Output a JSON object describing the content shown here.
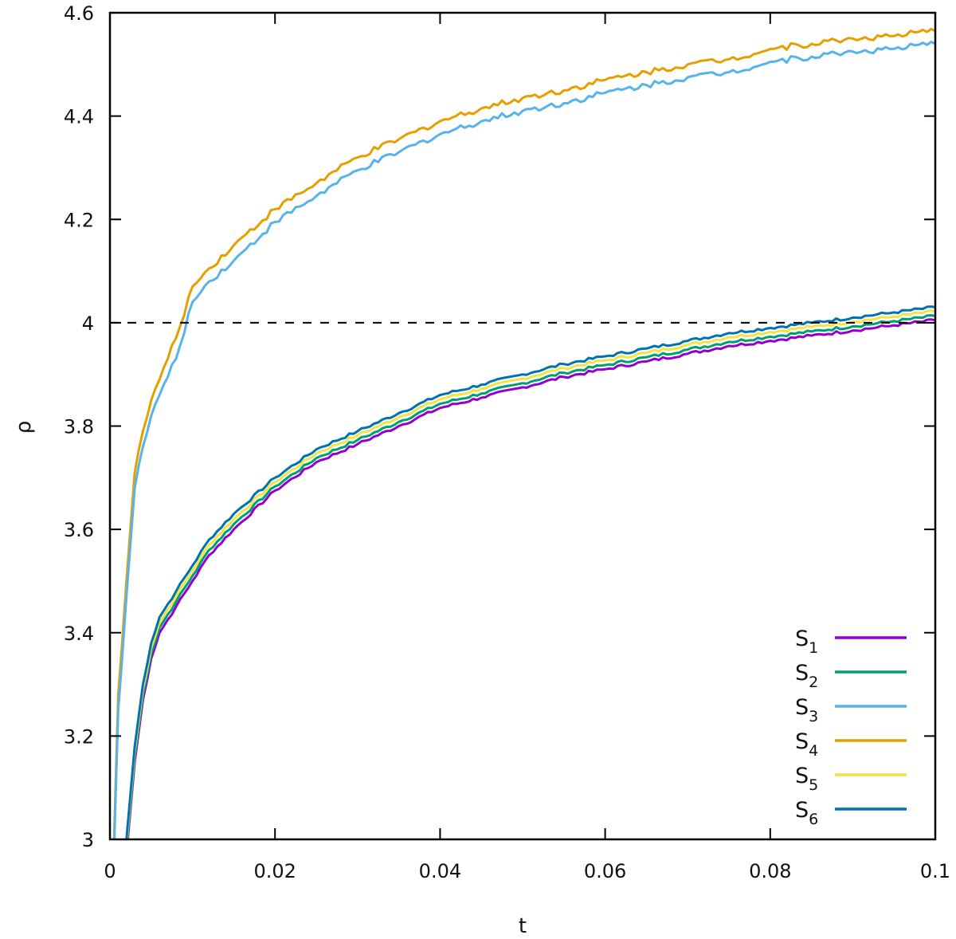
{
  "chart_data": {
    "type": "line",
    "title": "",
    "xlabel": "t",
    "ylabel": "ρ",
    "xlim": [
      0,
      0.1
    ],
    "ylim": [
      3,
      4.6
    ],
    "xticks": [
      0,
      0.02,
      0.04,
      0.06,
      0.08,
      0.1
    ],
    "xtick_labels": [
      "0",
      "0.02",
      "0.04",
      "0.06",
      "0.08",
      "0.1"
    ],
    "yticks": [
      3,
      3.2,
      3.4,
      3.6,
      3.8,
      4,
      4.2,
      4.4,
      4.6
    ],
    "ytick_labels": [
      "3",
      "3.2",
      "3.4",
      "3.6",
      "3.8",
      "4",
      "4.2",
      "4.4",
      "4.6"
    ],
    "grid": false,
    "legend_position": "lower right",
    "reference_line": {
      "type": "horizontal",
      "y": 4,
      "style": "dashed",
      "color": "#000000"
    },
    "x": [
      0.0005,
      0.001,
      0.002,
      0.003,
      0.004,
      0.005,
      0.006,
      0.008,
      0.01,
      0.012,
      0.015,
      0.02,
      0.025,
      0.03,
      0.035,
      0.04,
      0.045,
      0.05,
      0.055,
      0.06,
      0.065,
      0.07,
      0.075,
      0.08,
      0.085,
      0.09,
      0.095,
      0.1
    ],
    "series": [
      {
        "name": "S1",
        "sub": "1",
        "color": "#9400D3",
        "values": [
          null,
          null,
          2.97,
          3.15,
          3.27,
          3.35,
          3.4,
          3.45,
          3.5,
          3.55,
          3.6,
          3.675,
          3.73,
          3.765,
          3.8,
          3.835,
          3.855,
          3.875,
          3.895,
          3.91,
          3.925,
          3.94,
          3.955,
          3.965,
          3.975,
          3.985,
          3.995,
          4.005
        ]
      },
      {
        "name": "S2",
        "sub": "2",
        "color": "#009E73",
        "values": [
          null,
          null,
          2.98,
          3.16,
          3.28,
          3.36,
          3.41,
          3.46,
          3.51,
          3.56,
          3.61,
          3.683,
          3.738,
          3.773,
          3.808,
          3.843,
          3.863,
          3.883,
          3.903,
          3.918,
          3.933,
          3.948,
          3.963,
          3.973,
          3.983,
          3.993,
          4.003,
          4.013
        ]
      },
      {
        "name": "S3",
        "sub": "3",
        "color": "#56B4E9",
        "values": [
          2.98,
          3.25,
          3.47,
          3.68,
          3.76,
          3.82,
          3.86,
          3.93,
          4.04,
          4.08,
          4.12,
          4.195,
          4.245,
          4.295,
          4.33,
          4.365,
          4.39,
          4.41,
          4.425,
          4.445,
          4.46,
          4.475,
          4.485,
          4.505,
          4.515,
          4.525,
          4.53,
          4.54
        ]
      },
      {
        "name": "S4",
        "sub": "4",
        "color": "#E69F00",
        "values": [
          3.0,
          3.28,
          3.5,
          3.71,
          3.79,
          3.85,
          3.89,
          3.97,
          4.07,
          4.105,
          4.15,
          4.22,
          4.27,
          4.32,
          4.355,
          4.39,
          4.415,
          4.435,
          4.45,
          4.47,
          4.485,
          4.5,
          4.51,
          4.53,
          4.54,
          4.55,
          4.555,
          4.565
        ]
      },
      {
        "name": "S5",
        "sub": "5",
        "color": "#F0E442",
        "values": [
          null,
          null,
          2.99,
          3.17,
          3.29,
          3.37,
          3.42,
          3.47,
          3.52,
          3.57,
          3.62,
          3.692,
          3.747,
          3.782,
          3.817,
          3.852,
          3.872,
          3.892,
          3.912,
          3.927,
          3.942,
          3.957,
          3.972,
          3.982,
          3.992,
          4.002,
          4.012,
          4.022
        ]
      },
      {
        "name": "S6",
        "sub": "6",
        "color": "#0072B2",
        "values": [
          null,
          null,
          3.0,
          3.18,
          3.3,
          3.38,
          3.43,
          3.48,
          3.53,
          3.58,
          3.63,
          3.7,
          3.755,
          3.79,
          3.825,
          3.86,
          3.88,
          3.9,
          3.92,
          3.935,
          3.95,
          3.965,
          3.98,
          3.99,
          4.0,
          4.01,
          4.02,
          4.03
        ]
      }
    ]
  }
}
